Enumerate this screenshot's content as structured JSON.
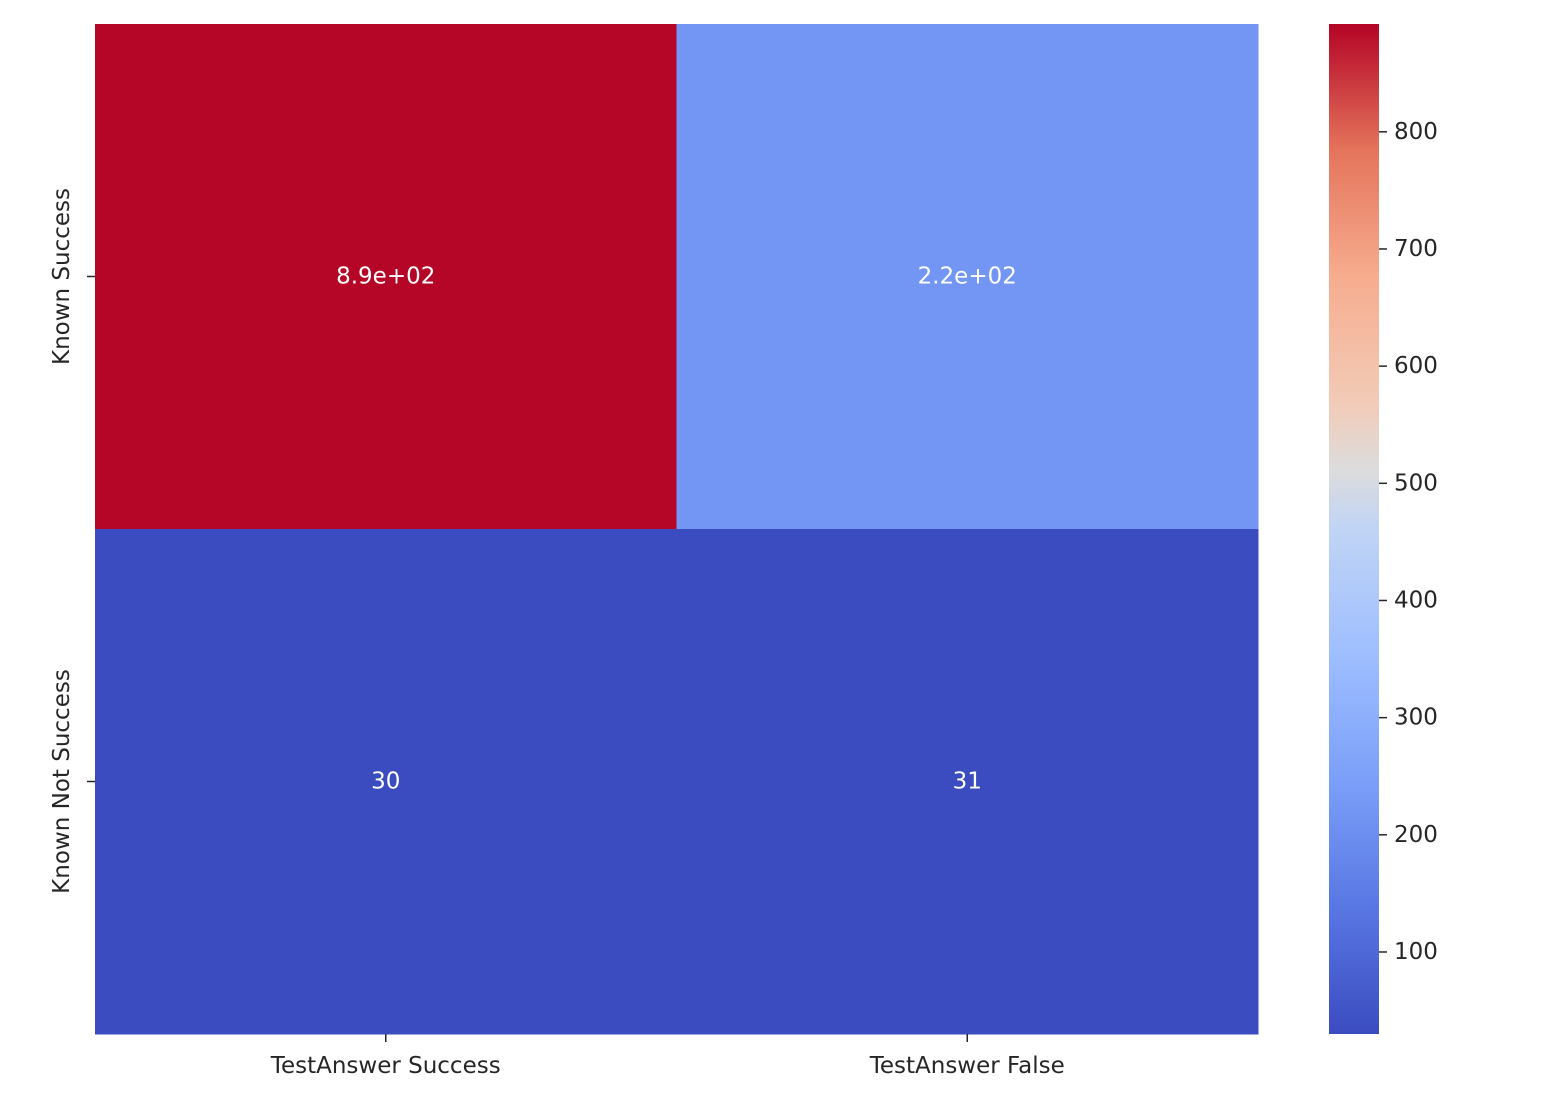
{
  "chart_data": {
    "type": "heatmap",
    "row_labels": [
      "Known Success",
      "Known Not Success"
    ],
    "column_labels": [
      "TestAnswer Success",
      "TestAnswer False"
    ],
    "values": [
      [
        890,
        220
      ],
      [
        30,
        31
      ]
    ],
    "annotations": [
      [
        "8.9e+02",
        "2.2e+02"
      ],
      [
        "30",
        "31"
      ]
    ],
    "colormap": "coolwarm",
    "colorbar": {
      "vmin": 30,
      "vmax": 892,
      "ticks": [
        100,
        200,
        300,
        400,
        500,
        600,
        700,
        800
      ],
      "tick_labels": [
        "100",
        "200",
        "300",
        "400",
        "500",
        "600",
        "700",
        "800"
      ]
    },
    "annotation_color": "#ffffff",
    "colors": {
      "text": "#262626",
      "tick": "#262626"
    }
  }
}
